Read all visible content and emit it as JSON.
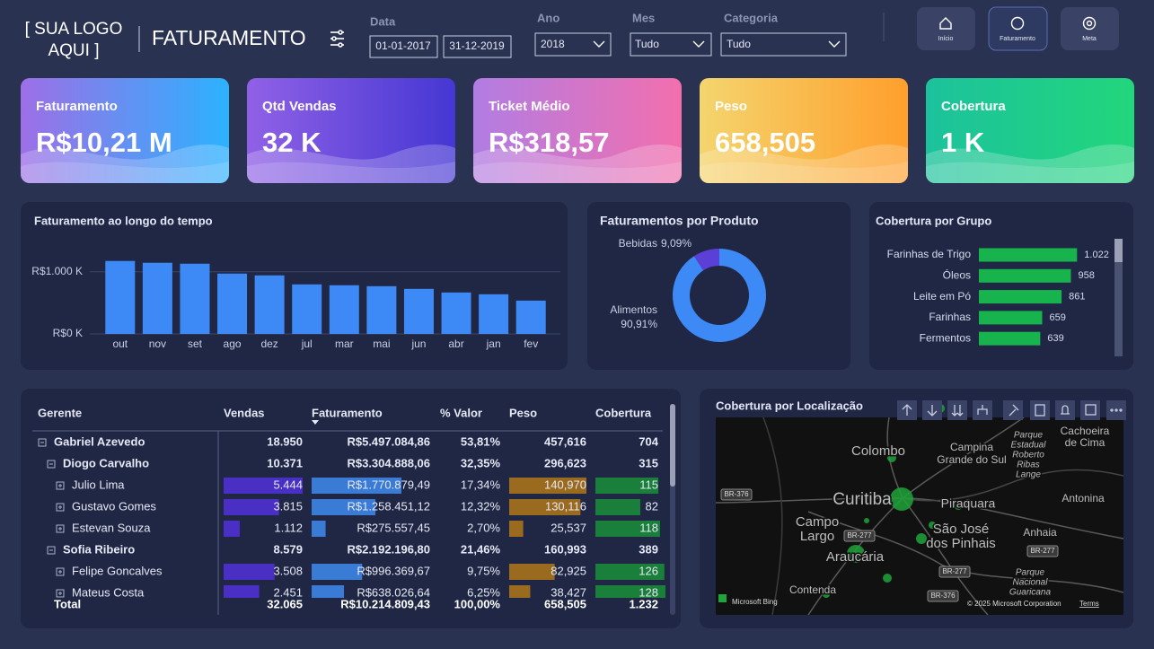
{
  "header": {
    "logo": [
      "[ SUA LOGO",
      "AQUI ]"
    ],
    "title": "FATURAMENTO"
  },
  "filters": {
    "data": {
      "label": "Data",
      "start": "01-01-2017",
      "end": "31-12-2019"
    },
    "ano": {
      "label": "Ano",
      "value": "2018"
    },
    "mes": {
      "label": "Mes",
      "value": "Tudo"
    },
    "categoria": {
      "label": "Categoria",
      "value": "Tudo"
    }
  },
  "nav": [
    "Início",
    "Faturamento",
    "Meta"
  ],
  "kpis": [
    {
      "label": "Faturamento",
      "value": "R$10,21 M"
    },
    {
      "label": "Qtd Vendas",
      "value": "32 K"
    },
    {
      "label": "Ticket Médio",
      "value": "R$318,57"
    },
    {
      "label": "Peso",
      "value": "658,505"
    },
    {
      "label": "Cobertura",
      "value": "1 K"
    }
  ],
  "chart_data": [
    {
      "type": "bar",
      "title": "Faturamento ao longo do tempo",
      "categories": [
        "out",
        "nov",
        "set",
        "ago",
        "dez",
        "jul",
        "mar",
        "mai",
        "jun",
        "abr",
        "jan",
        "fev"
      ],
      "values": [
        1174,
        1145,
        1130,
        971,
        942,
        797,
        783,
        768,
        725,
        667,
        638,
        536
      ],
      "color": "#3d8af7",
      "ylim": [
        0,
        1300
      ],
      "yticks": [
        {
          "value": 0,
          "label": "R$0 K"
        },
        {
          "value": 1000,
          "label": "R$1.000 K"
        }
      ],
      "grid": true
    },
    {
      "type": "donut",
      "title": "Faturamentos por Produto",
      "categories": [
        "Bebidas",
        "Alimentos"
      ],
      "values": [
        9.09,
        90.91
      ],
      "value_labels": [
        "9,09%",
        "90,91%"
      ],
      "colors": [
        "#5b3fd6",
        "#3d8af7"
      ]
    },
    {
      "type": "hbar",
      "title": "Cobertura por Grupo",
      "categories": [
        "Farinhas de Trigo",
        "Óleos",
        "Leite em Pó",
        "Farinhas",
        "Fermentos"
      ],
      "values": [
        1022,
        958,
        861,
        659,
        639
      ],
      "value_labels": [
        "1.022",
        "958",
        "861",
        "659",
        "639"
      ],
      "color": "#17b44e",
      "xlim": [
        0,
        1150
      ]
    }
  ],
  "table": {
    "columns": [
      "Gerente",
      "Vendas",
      "Faturamento",
      "% Valor",
      "Peso",
      "Cobertura"
    ],
    "rows": [
      {
        "cells": [
          "Gabriel Azevedo",
          "18.950",
          "R$5.497.084,86",
          "53,81%",
          "457,616",
          "704"
        ],
        "children": [
          {
            "cells": [
              "Diogo Carvalho",
              "10.371",
              "R$3.304.888,06",
              "32,35%",
              "296,623",
              "315"
            ],
            "children": [
              {
                "cells": [
                  "Julio Lima",
                  "5.444",
                  "R$1.770.879,49",
                  "17,34%",
                  "140,970",
                  "115"
                ]
              },
              {
                "cells": [
                  "Gustavo Gomes",
                  "3.815",
                  "R$1.258.451,12",
                  "12,32%",
                  "130,116",
                  "82"
                ]
              },
              {
                "cells": [
                  "Estevan Souza",
                  "1.112",
                  "R$275.557,45",
                  "2,70%",
                  "25,537",
                  "118"
                ]
              }
            ]
          },
          {
            "cells": [
              "Sofia Ribeiro",
              "8.579",
              "R$2.192.196,80",
              "21,46%",
              "160,993",
              "389"
            ],
            "children": [
              {
                "cells": [
                  "Felipe Goncalves",
                  "3.508",
                  "R$996.369,67",
                  "9,75%",
                  "82,925",
                  "126"
                ]
              },
              {
                "cells": [
                  "Mateus Costa",
                  "2.451",
                  "R$638.026,64",
                  "6,25%",
                  "38,427",
                  "128"
                ]
              }
            ]
          }
        ]
      }
    ],
    "total": [
      "Total",
      "32.065",
      "R$10.214.809,43",
      "100,00%",
      "658,505",
      "1.232"
    ]
  },
  "map": {
    "title": "Cobertura por Localização",
    "places": [
      "Colombo",
      "Curitiba",
      [
        "Campo",
        "Largo"
      ],
      "Araucária",
      "Piraquara",
      [
        "São José",
        "dos Pinhais"
      ],
      [
        "Campina",
        "Grande do Sul"
      ],
      [
        "Cachoeira",
        "de Cima"
      ],
      "Antonina",
      "Anhaia",
      "Contenda",
      [
        "Parque",
        "Estadual",
        "Roberto",
        "Ribas",
        "Lange"
      ],
      [
        "Parque",
        "Nacional",
        "Guaricana"
      ]
    ],
    "roads": [
      "BR-376",
      "BR-277",
      "BR-277",
      "BR-376",
      "BR-277"
    ],
    "attribution": [
      "Microsoft Bing",
      "© 2025 Microsoft Corporation",
      "Terms"
    ]
  }
}
